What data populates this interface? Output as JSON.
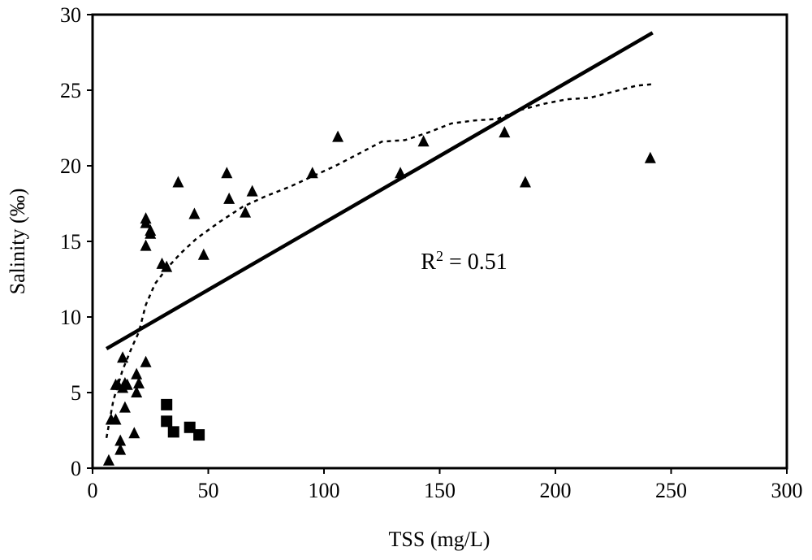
{
  "chart_data": {
    "type": "scatter",
    "title": "",
    "xlabel": "TSS (mg/L)",
    "ylabel": "Salinity (‰)",
    "xlim": [
      0,
      300
    ],
    "ylim": [
      0,
      30
    ],
    "x_ticks": [
      0,
      50,
      100,
      150,
      200,
      250,
      300
    ],
    "y_ticks": [
      0,
      5,
      10,
      15,
      20,
      25,
      30
    ],
    "grid": false,
    "annotation": {
      "r2_label": "R",
      "r2_sup": "2",
      "r2_value": " = 0.51",
      "x": 150,
      "y": 13.7
    },
    "series": [
      {
        "name": "triangles",
        "marker": "triangle",
        "points": [
          [
            7,
            0.5
          ],
          [
            8,
            3.2
          ],
          [
            10,
            3.2
          ],
          [
            10,
            5.5
          ],
          [
            11,
            5.5
          ],
          [
            12,
            1.2
          ],
          [
            12,
            1.8
          ],
          [
            13,
            5.3
          ],
          [
            13,
            7.3
          ],
          [
            14,
            5.6
          ],
          [
            14,
            4.0
          ],
          [
            15,
            5.5
          ],
          [
            18,
            2.3
          ],
          [
            19,
            5.0
          ],
          [
            19,
            6.2
          ],
          [
            20,
            5.6
          ],
          [
            23,
            7.0
          ],
          [
            23,
            14.7
          ],
          [
            23,
            16.2
          ],
          [
            23,
            16.5
          ],
          [
            25,
            15.7
          ],
          [
            25,
            15.5
          ],
          [
            30,
            13.5
          ],
          [
            32,
            13.3
          ],
          [
            37,
            18.9
          ],
          [
            44,
            16.8
          ],
          [
            48,
            14.1
          ],
          [
            58,
            19.5
          ],
          [
            59,
            17.8
          ],
          [
            66,
            16.9
          ],
          [
            69,
            18.3
          ],
          [
            95,
            19.5
          ],
          [
            106,
            21.9
          ],
          [
            133,
            19.5
          ],
          [
            143,
            21.6
          ],
          [
            178,
            22.2
          ],
          [
            187,
            18.9
          ],
          [
            241,
            20.5
          ]
        ]
      },
      {
        "name": "squares",
        "marker": "square",
        "points": [
          [
            32,
            4.2
          ],
          [
            32,
            3.1
          ],
          [
            35,
            2.4
          ],
          [
            42,
            2.7
          ],
          [
            46,
            2.2
          ]
        ]
      },
      {
        "name": "linear-fit",
        "style": "solid",
        "points": [
          [
            6,
            7.9
          ],
          [
            242,
            28.8
          ]
        ]
      },
      {
        "name": "moving-average",
        "style": "dotted",
        "points": [
          [
            6,
            2.0
          ],
          [
            9,
            4.5
          ],
          [
            13,
            6.5
          ],
          [
            17,
            8.0
          ],
          [
            20,
            9.0
          ],
          [
            23,
            10.8
          ],
          [
            27,
            12.2
          ],
          [
            32,
            13.2
          ],
          [
            38,
            14.2
          ],
          [
            45,
            15.2
          ],
          [
            55,
            16.3
          ],
          [
            65,
            17.3
          ],
          [
            75,
            18.0
          ],
          [
            85,
            18.6
          ],
          [
            95,
            19.3
          ],
          [
            105,
            20.0
          ],
          [
            115,
            20.8
          ],
          [
            125,
            21.6
          ],
          [
            135,
            21.7
          ],
          [
            145,
            22.2
          ],
          [
            155,
            22.8
          ],
          [
            165,
            23.0
          ],
          [
            175,
            23.1
          ],
          [
            185,
            23.7
          ],
          [
            195,
            24.1
          ],
          [
            205,
            24.4
          ],
          [
            215,
            24.5
          ],
          [
            225,
            24.9
          ],
          [
            235,
            25.3
          ],
          [
            242,
            25.4
          ]
        ]
      }
    ]
  }
}
